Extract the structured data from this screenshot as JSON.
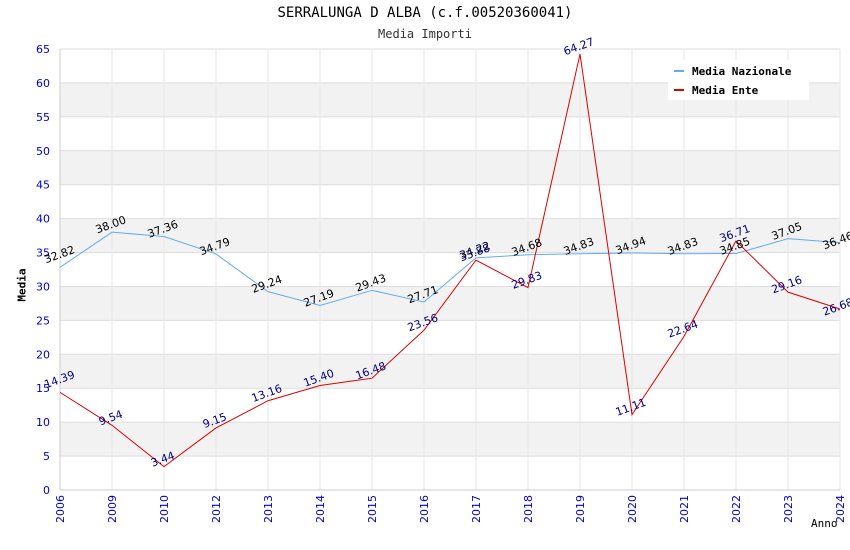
{
  "chart_data": {
    "type": "line",
    "title": "SERRALUNGA D ALBA (c.f.00520360041)",
    "subtitle": "Media Importi",
    "xlabel": "Anno",
    "ylabel": "Media",
    "categories": [
      "2006",
      "2009",
      "2010",
      "2012",
      "2013",
      "2014",
      "2015",
      "2016",
      "2017",
      "2018",
      "2019",
      "2020",
      "2021",
      "2022",
      "2023",
      "2024"
    ],
    "ylim": [
      0,
      65
    ],
    "yticks": [
      0,
      5,
      10,
      15,
      20,
      25,
      30,
      35,
      40,
      45,
      50,
      55,
      60,
      65
    ],
    "series": [
      {
        "name": "Media Nazionale",
        "color": "#66aaee",
        "label_color": "#000000",
        "values": [
          32.82,
          38.0,
          37.36,
          34.79,
          29.24,
          27.19,
          29.43,
          27.71,
          34.22,
          34.68,
          34.83,
          34.94,
          34.83,
          34.85,
          37.05,
          36.46
        ],
        "labels": [
          "32.82",
          "38.00",
          "37.36",
          "34.79",
          "29.24",
          "27.19",
          "29.43",
          "27.71",
          "34.22",
          "34.68",
          "34.83",
          "34.94",
          "34.83",
          "34.85",
          "37.05",
          "36.46"
        ]
      },
      {
        "name": "Media Ente",
        "color": "#dd0000",
        "label_color": "#000080",
        "values": [
          14.39,
          9.54,
          3.44,
          9.15,
          13.16,
          15.4,
          16.48,
          23.56,
          33.88,
          29.83,
          64.27,
          11.11,
          22.64,
          36.71,
          29.16,
          26.68
        ],
        "labels": [
          "14.39",
          "9.54",
          "3.44",
          "9.15",
          "13.16",
          "15.40",
          "16.48",
          "23.56",
          "33.88",
          "29.83",
          "64.27",
          "11.11",
          "22.64",
          "36.71",
          "29.16",
          "26.68"
        ]
      }
    ]
  }
}
